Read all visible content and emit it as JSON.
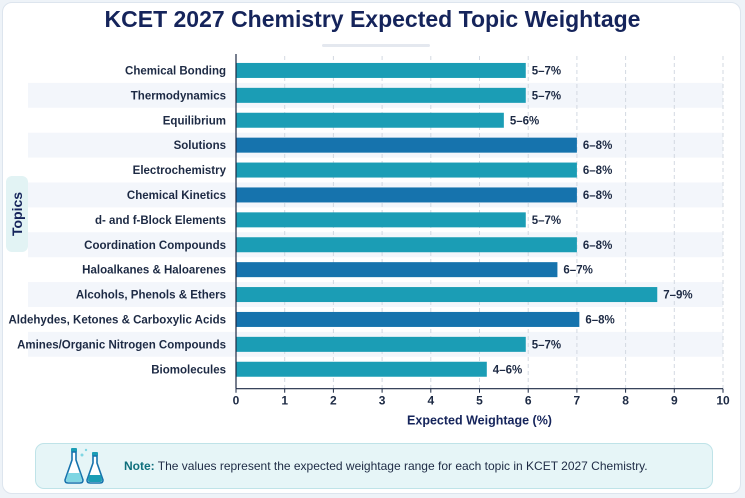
{
  "title": "KCET 2027 Chemistry Expected Topic Weightage",
  "colors": {
    "title": "#15245b",
    "bar_teal": "#1b9db5",
    "bar_blue": "#1673ad",
    "bar_ice": "#7fd6e3",
    "accent": "#0f6f7c"
  },
  "note": {
    "icon": "lab-flasks-icon",
    "label": "Note:",
    "text": "The values represent the expected weightage range for each topic in KCET 2027 Chemistry."
  },
  "chart_data": {
    "type": "bar",
    "orientation": "horizontal",
    "title": "KCET 2027 Chemistry Expected Topic Weightage",
    "xlabel": "Expected Weightage (%)",
    "ylabel": "Topics",
    "xlim": [
      0,
      10
    ],
    "xticks": [
      "0",
      "1",
      "2",
      "3",
      "4",
      "5",
      "6",
      "7",
      "8",
      "9",
      "10"
    ],
    "grid": "vertical dashed",
    "categories": [
      "Chemical Bonding",
      "Thermodynamics",
      "Equilibrium",
      "Solutions",
      "Electrochemistry",
      "Chemical Kinetics",
      "d- and f-Block Elements",
      "Coordination Compounds",
      "Haloalkanes & Haloarenes",
      "Alcohols, Phenols & Ethers",
      "Aldehydes, Ketones & Carboxylic Acids",
      "Amines/Organic Nitrogen Compounds",
      "Biomolecules"
    ],
    "values": [
      5.95,
      5.95,
      5.5,
      7.0,
      7.0,
      7.0,
      5.95,
      7.0,
      6.6,
      8.65,
      7.05,
      5.95,
      5.15
    ],
    "data_labels": [
      "5–7%",
      "5–7%",
      "5–6%",
      "6–8%",
      "6–8%",
      "6–8%",
      "5–7%",
      "6–8%",
      "6–7%",
      "7–9%",
      "6–8%",
      "5–7%",
      "4–6%"
    ],
    "bar_colors": [
      "#1b9db5",
      "#1b9db5",
      "#1b9db5",
      "#1673ad",
      "#1b9db5",
      "#1673ad",
      "#1b9db5",
      "#1b9db5",
      "#1673ad",
      "#1b9db5",
      "#1673ad",
      "#1b9db5",
      "#1b9db5"
    ]
  }
}
